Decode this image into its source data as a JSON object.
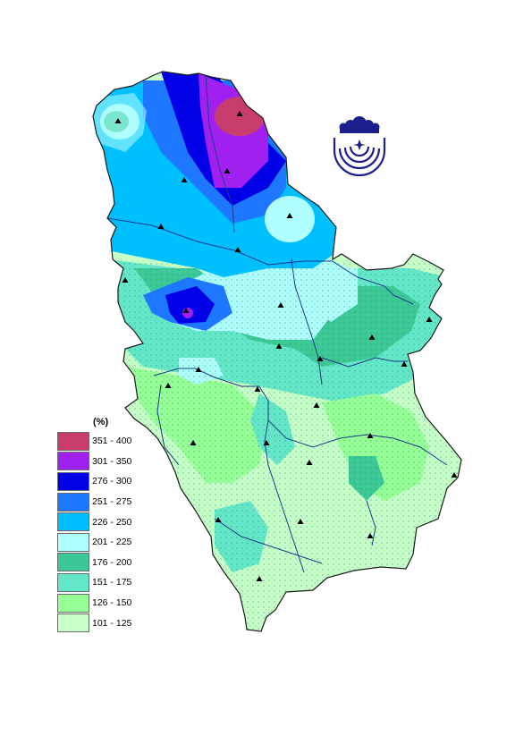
{
  "map": {
    "region": "Serbia",
    "style": "choropleth with relief shading, rivers, station markers",
    "colors": {
      "border": "#1a1a1a",
      "river": "#1e3a8a",
      "station": "#000000"
    }
  },
  "legend": {
    "title": "(%)",
    "items": [
      {
        "label": "351 - 400",
        "color": "#c93d6e"
      },
      {
        "label": "301 - 350",
        "color": "#a020f0"
      },
      {
        "label": "276 - 300",
        "color": "#0000e6"
      },
      {
        "label": "251 - 275",
        "color": "#1e78ff"
      },
      {
        "label": "226 - 250",
        "color": "#00bfff"
      },
      {
        "label": "201 - 225",
        "color": "#b0ffff"
      },
      {
        "label": "176 - 200",
        "color": "#3cc896"
      },
      {
        "label": "151 - 175",
        "color": "#64e6c8"
      },
      {
        "label": "126 - 150",
        "color": "#96ff96"
      },
      {
        "label": "101 - 125",
        "color": "#c8ffc8"
      }
    ]
  },
  "logo": {
    "icon": "institution-emblem-icon"
  }
}
